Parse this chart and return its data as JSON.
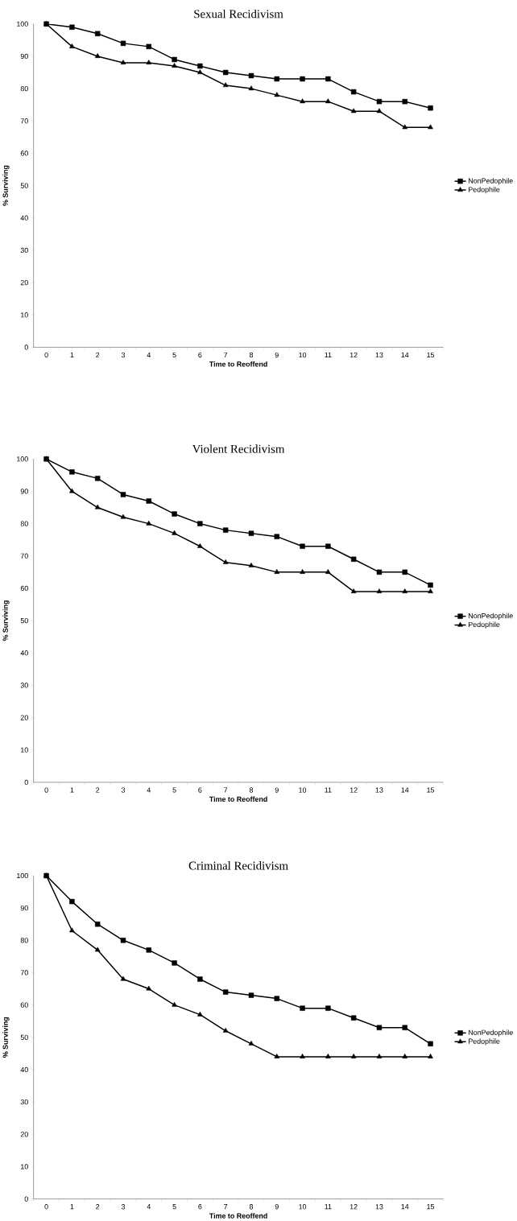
{
  "chart_data": [
    {
      "type": "line",
      "title": "Sexual Recidivism",
      "xlabel": "Time to Reoffend",
      "ylabel": "% Surviving",
      "categories": [
        "0",
        "1",
        "2",
        "3",
        "4",
        "5",
        "6",
        "7",
        "8",
        "9",
        "10",
        "11",
        "12",
        "13",
        "14",
        "15"
      ],
      "ylim": [
        0,
        100
      ],
      "yticks": [
        0,
        10,
        20,
        30,
        40,
        50,
        60,
        70,
        80,
        90,
        100
      ],
      "legend": "right",
      "grid": false,
      "series": [
        {
          "name": "NonPedophile",
          "color": "#000000",
          "marker": "square",
          "values": [
            100,
            99,
            97,
            94,
            93,
            89,
            87,
            85,
            84,
            83,
            83,
            83,
            79,
            76,
            76,
            74
          ]
        },
        {
          "name": "Pedophile",
          "color": "#000000",
          "marker": "triangle",
          "values": [
            100,
            93,
            90,
            88,
            88,
            87,
            85,
            81,
            80,
            78,
            76,
            76,
            73,
            73,
            68,
            68
          ]
        }
      ]
    },
    {
      "type": "line",
      "title": "Violent Recidivism",
      "xlabel": "Time to Reoffend",
      "ylabel": "% Surviving",
      "categories": [
        "0",
        "1",
        "2",
        "3",
        "4",
        "5",
        "6",
        "7",
        "8",
        "9",
        "10",
        "11",
        "12",
        "13",
        "14",
        "15"
      ],
      "ylim": [
        0,
        100
      ],
      "yticks": [
        0,
        10,
        20,
        30,
        40,
        50,
        60,
        70,
        80,
        90,
        100
      ],
      "legend": "right",
      "grid": false,
      "series": [
        {
          "name": "NonPedophile",
          "color": "#000000",
          "marker": "square",
          "values": [
            100,
            96,
            94,
            89,
            87,
            83,
            80,
            78,
            77,
            76,
            73,
            73,
            69,
            65,
            65,
            61
          ]
        },
        {
          "name": "Pedophile",
          "color": "#000000",
          "marker": "triangle",
          "values": [
            100,
            90,
            85,
            82,
            80,
            77,
            73,
            68,
            67,
            65,
            65,
            65,
            59,
            59,
            59,
            59
          ]
        }
      ]
    },
    {
      "type": "line",
      "title": "Criminal Recidivism",
      "xlabel": "Time to Reoffend",
      "ylabel": "% Surviving",
      "categories": [
        "0",
        "1",
        "2",
        "3",
        "4",
        "5",
        "6",
        "7",
        "8",
        "9",
        "10",
        "11",
        "12",
        "13",
        "14",
        "15"
      ],
      "ylim": [
        0,
        100
      ],
      "yticks": [
        0,
        10,
        20,
        30,
        40,
        50,
        60,
        70,
        80,
        90,
        100
      ],
      "legend": "right",
      "grid": false,
      "series": [
        {
          "name": "NonPedophile",
          "color": "#000000",
          "marker": "square",
          "values": [
            100,
            92,
            85,
            80,
            77,
            73,
            68,
            64,
            63,
            62,
            59,
            59,
            56,
            53,
            53,
            48
          ]
        },
        {
          "name": "Pedophile",
          "color": "#000000",
          "marker": "triangle",
          "values": [
            100,
            83,
            77,
            68,
            65,
            60,
            57,
            52,
            48,
            44,
            44,
            44,
            44,
            44,
            44,
            44
          ]
        }
      ]
    }
  ]
}
